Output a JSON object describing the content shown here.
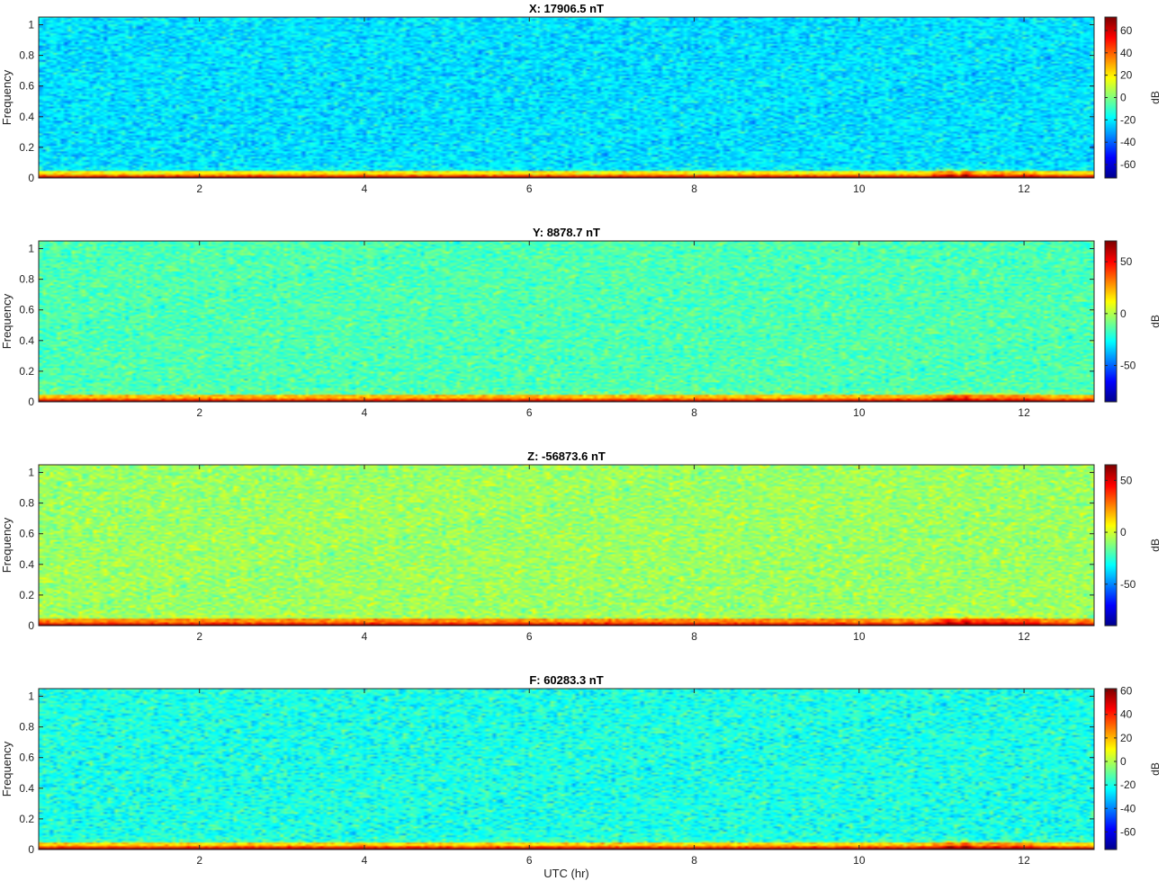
{
  "figure": {
    "xlabel": "UTC (hr)"
  },
  "colors": {
    "colormap": "jet",
    "jet_stops": [
      "#00008f",
      "#0000ff",
      "#00ffff",
      "#ffff00",
      "#ff0000",
      "#800000"
    ]
  },
  "chart_data": [
    {
      "type": "heatmap",
      "title": "X: 17906.5 nT",
      "ylabel": "Frequency",
      "colorbar_label": "dB",
      "xlim": [
        0.05,
        12.85
      ],
      "ylim": [
        0,
        1.05
      ],
      "x_ticks": [
        2,
        4,
        6,
        8,
        10,
        12
      ],
      "y_ticks": [
        0,
        0.2,
        0.4,
        0.6,
        0.8,
        1
      ],
      "x_tick_labels": [
        "2",
        "4",
        "6",
        "8",
        "10",
        "12"
      ],
      "y_tick_labels": [
        "0",
        "0.2",
        "0.4",
        "0.6",
        "0.8",
        "1"
      ],
      "clim": [
        -72,
        72
      ],
      "colorbar_ticks": [
        60,
        40,
        20,
        0,
        -20,
        -40,
        -60
      ],
      "colorbar_tick_labels": [
        "60",
        "40",
        "20",
        "0",
        "-20",
        "-40",
        "-60"
      ],
      "background_db": -22,
      "low_freq_db": 70,
      "event_hours": [
        11.1,
        11.3
      ]
    },
    {
      "type": "heatmap",
      "title": "Y: 8878.7 nT",
      "ylabel": "Frequency",
      "colorbar_label": "dB",
      "xlim": [
        0.05,
        12.85
      ],
      "ylim": [
        0,
        1.05
      ],
      "x_ticks": [
        2,
        4,
        6,
        8,
        10,
        12
      ],
      "y_ticks": [
        0,
        0.2,
        0.4,
        0.6,
        0.8,
        1
      ],
      "x_tick_labels": [
        "2",
        "4",
        "6",
        "8",
        "10",
        "12"
      ],
      "y_tick_labels": [
        "0",
        "0.2",
        "0.4",
        "0.6",
        "0.8",
        "1"
      ],
      "clim": [
        -85,
        70
      ],
      "colorbar_ticks": [
        50,
        0,
        -50
      ],
      "colorbar_tick_labels": [
        "50",
        "0",
        "-50"
      ],
      "background_db": -15,
      "low_freq_db": 68,
      "event_hours": [
        11.1,
        11.3
      ]
    },
    {
      "type": "heatmap",
      "title": "Z: -56873.6 nT",
      "ylabel": "Frequency",
      "colorbar_label": "dB",
      "xlim": [
        0.05,
        12.85
      ],
      "ylim": [
        0,
        1.05
      ],
      "x_ticks": [
        2,
        4,
        6,
        8,
        10,
        12
      ],
      "y_ticks": [
        0,
        0.2,
        0.4,
        0.6,
        0.8,
        1
      ],
      "x_tick_labels": [
        "2",
        "4",
        "6",
        "8",
        "10",
        "12"
      ],
      "y_tick_labels": [
        "0",
        "0.2",
        "0.4",
        "0.6",
        "0.8",
        "1"
      ],
      "clim": [
        -90,
        65
      ],
      "colorbar_ticks": [
        50,
        0,
        -50
      ],
      "colorbar_tick_labels": [
        "50",
        "0",
        "-50"
      ],
      "background_db": -8,
      "low_freq_db": 63,
      "event_hours": [
        11.1,
        11.3
      ]
    },
    {
      "type": "heatmap",
      "title": "F: 60283.3 nT",
      "ylabel": "Frequency",
      "colorbar_label": "dB",
      "xlim": [
        0.05,
        12.85
      ],
      "ylim": [
        0,
        1.05
      ],
      "x_ticks": [
        2,
        4,
        6,
        8,
        10,
        12
      ],
      "y_ticks": [
        0,
        0.2,
        0.4,
        0.6,
        0.8,
        1
      ],
      "x_tick_labels": [
        "2",
        "4",
        "6",
        "8",
        "10",
        "12"
      ],
      "y_tick_labels": [
        "0",
        "0.2",
        "0.4",
        "0.6",
        "0.8",
        "1"
      ],
      "clim": [
        -75,
        62
      ],
      "colorbar_ticks": [
        60,
        40,
        20,
        0,
        -20,
        -40,
        -60
      ],
      "colorbar_tick_labels": [
        "60",
        "40",
        "20",
        "0",
        "-20",
        "-40",
        "-60"
      ],
      "background_db": -20,
      "low_freq_db": 60,
      "event_hours": [
        11.1,
        11.3
      ]
    }
  ]
}
